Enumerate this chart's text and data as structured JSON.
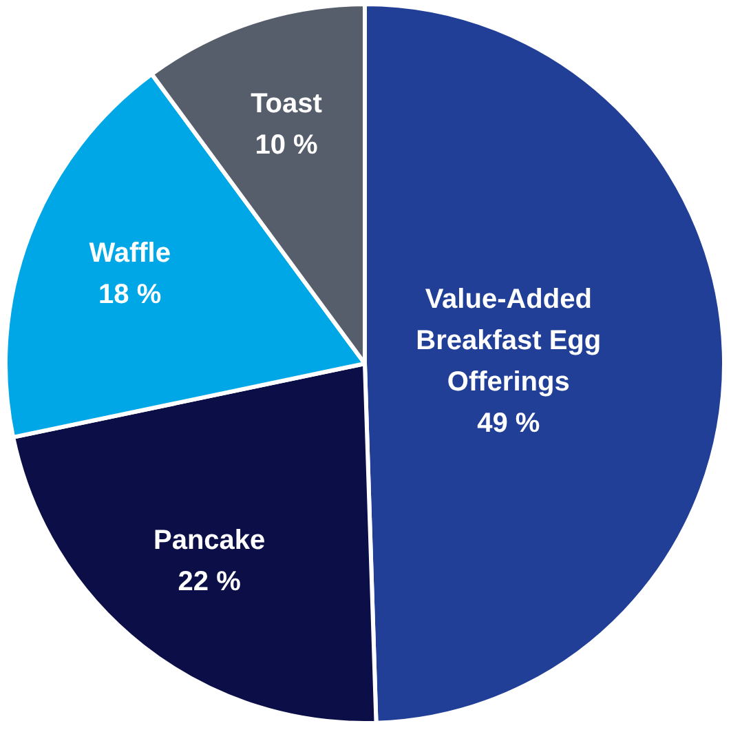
{
  "chart_data": {
    "type": "pie",
    "categories": [
      "Value-Added Breakfast Egg Offerings",
      "Pancake",
      "Waffle",
      "Toast"
    ],
    "values": [
      49,
      22,
      18,
      10
    ],
    "value_labels": [
      "49 %",
      "22 %",
      "18 %",
      "10 %"
    ],
    "colors": [
      "#223f97",
      "#0b0e47",
      "#00a7e6",
      "#575e6b"
    ]
  }
}
